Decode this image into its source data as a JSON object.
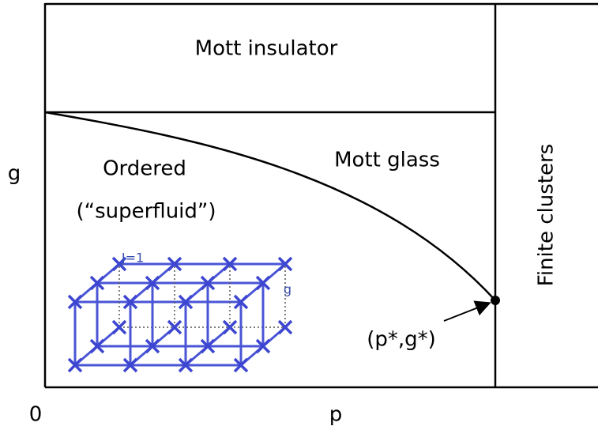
{
  "axes": {
    "y_label": "g",
    "x_origin": "0",
    "x_label": "p"
  },
  "regions": {
    "top": "Mott insulator",
    "ordered_line1": "Ordered",
    "ordered_line2": "(“superfluid”)",
    "glass": "Mott glass",
    "right": "Finite clusters"
  },
  "point": {
    "label": "(p*,g*)"
  },
  "inset": {
    "coupling": "J=1",
    "field": "g"
  }
}
